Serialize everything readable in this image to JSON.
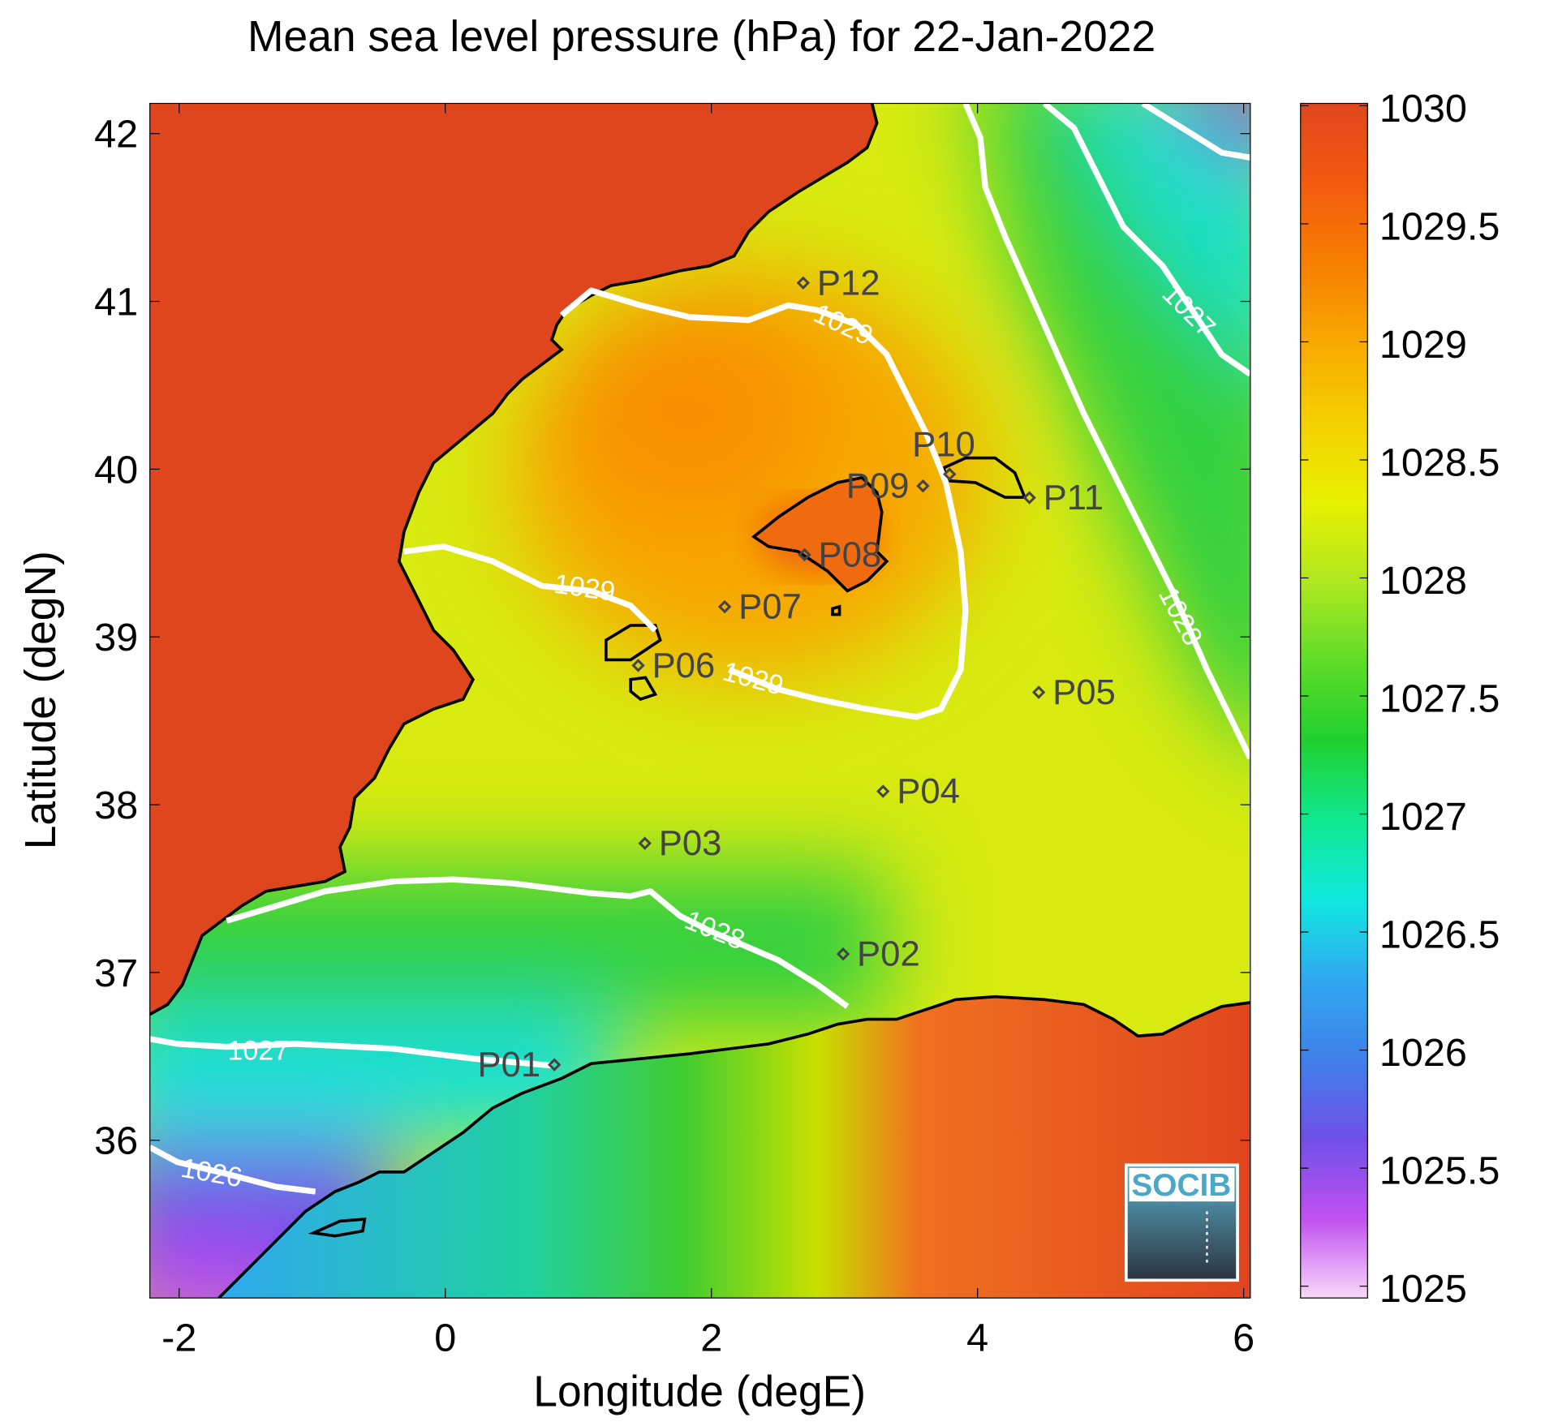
{
  "map": {
    "title": "Mean sea level pressure (hPa) for 22-Jan-2022",
    "x_label": "Longitude (degE)",
    "y_label": "Latitude (degN)",
    "xlim": [
      -2.22,
      6.05
    ],
    "ylim": [
      35.06,
      42.18
    ],
    "xticks": [
      -2,
      0,
      2,
      4,
      6
    ],
    "yticks": [
      36,
      37,
      38,
      39,
      40,
      41,
      42
    ],
    "colorbar": {
      "clim": [
        1024.95,
        1030.01
      ],
      "ticks": [
        1025,
        1025.5,
        1026,
        1026.5,
        1027,
        1027.5,
        1028,
        1028.5,
        1029,
        1029.5,
        1030
      ],
      "colors": [
        "#f8d8f8",
        "#c050f0",
        "#7050e8",
        "#4080e8",
        "#30a8f0",
        "#10e8e0",
        "#10e890",
        "#20d030",
        "#60dc28",
        "#b0e820",
        "#e8f000",
        "#f5d000",
        "#f8a800",
        "#f77f00",
        "#f25a10",
        "#e0461e"
      ]
    },
    "contour_labels": [
      1029,
      1029,
      1029,
      1028,
      1027,
      1028,
      1027,
      1026
    ],
    "points": [
      {
        "name": "P01",
        "lon": 0.82,
        "lat": 36.45
      },
      {
        "name": "P02",
        "lon": 2.99,
        "lat": 37.11
      },
      {
        "name": "P03",
        "lon": 1.5,
        "lat": 37.77
      },
      {
        "name": "P04",
        "lon": 3.29,
        "lat": 38.08
      },
      {
        "name": "P05",
        "lon": 4.46,
        "lat": 38.67
      },
      {
        "name": "P06",
        "lon": 1.45,
        "lat": 38.83
      },
      {
        "name": "P07",
        "lon": 2.1,
        "lat": 39.18
      },
      {
        "name": "P08",
        "lon": 2.7,
        "lat": 39.49
      },
      {
        "name": "P09",
        "lon": 3.59,
        "lat": 39.9
      },
      {
        "name": "P10",
        "lon": 3.79,
        "lat": 39.97
      },
      {
        "name": "P11",
        "lon": 4.39,
        "lat": 39.83
      },
      {
        "name": "P12",
        "lon": 2.69,
        "lat": 41.11
      }
    ],
    "logo": "SOCIB"
  }
}
